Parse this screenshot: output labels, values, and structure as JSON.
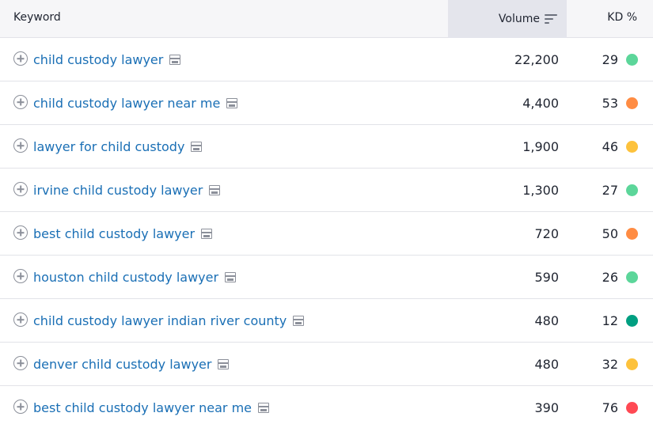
{
  "header": {
    "keyword_label": "Keyword",
    "volume_label": "Volume",
    "kd_label": "KD %"
  },
  "colors": {
    "link": "#1a6fb5",
    "kd_easy": "#5cd69a",
    "kd_very_easy": "#009f81",
    "kd_possible": "#fdc23c",
    "kd_difficult": "#ff8c43",
    "kd_hard": "#ff4953"
  },
  "rows": [
    {
      "keyword": "child custody lawyer",
      "volume": "22,200",
      "kd": "29",
      "kd_color": "#5cd69a"
    },
    {
      "keyword": "child custody lawyer near me",
      "volume": "4,400",
      "kd": "53",
      "kd_color": "#ff8c43"
    },
    {
      "keyword": "lawyer for child custody",
      "volume": "1,900",
      "kd": "46",
      "kd_color": "#fdc23c"
    },
    {
      "keyword": "irvine child custody lawyer",
      "volume": "1,300",
      "kd": "27",
      "kd_color": "#5cd69a"
    },
    {
      "keyword": "best child custody lawyer",
      "volume": "720",
      "kd": "50",
      "kd_color": "#ff8c43"
    },
    {
      "keyword": "houston child custody lawyer",
      "volume": "590",
      "kd": "26",
      "kd_color": "#5cd69a"
    },
    {
      "keyword": "child custody lawyer indian river county",
      "volume": "480",
      "kd": "12",
      "kd_color": "#009f81"
    },
    {
      "keyword": "denver child custody lawyer",
      "volume": "480",
      "kd": "32",
      "kd_color": "#fdc23c"
    },
    {
      "keyword": "best child custody lawyer near me",
      "volume": "390",
      "kd": "76",
      "kd_color": "#ff4953"
    }
  ]
}
